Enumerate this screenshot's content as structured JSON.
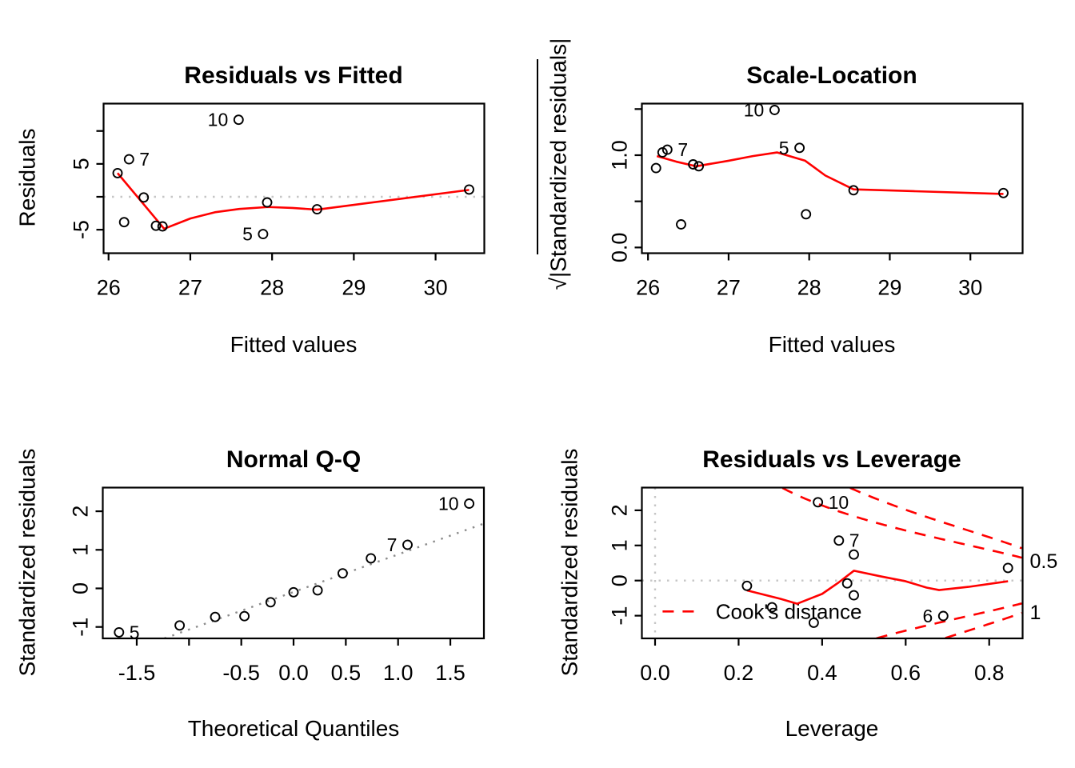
{
  "figure": {
    "description": "R lm() diagnostic plots, 2x2 grid",
    "colors": {
      "smooth": "#ff0000",
      "cooks_contour": "#ff0000",
      "zero_line": "#c6c6c6",
      "qq_line": "#8c8c8c",
      "points": "#000000"
    }
  },
  "chart_data": [
    {
      "type": "scatter",
      "title": "Residuals vs Fitted",
      "xlabel": "Fitted values",
      "ylabel": "Residuals",
      "xlim": [
        25.939,
        30.596
      ],
      "ylim": [
        -8.57,
        14.16
      ],
      "xticks": [
        {
          "v": 26,
          "label": "26"
        },
        {
          "v": 27,
          "label": "27"
        },
        {
          "v": 28,
          "label": "28"
        },
        {
          "v": 29,
          "label": "29"
        },
        {
          "v": 30,
          "label": "30"
        }
      ],
      "yticks": [
        {
          "v": 10,
          "label": ""
        },
        {
          "v": 5,
          "label": "5"
        },
        {
          "v": 0,
          "label": ""
        },
        {
          "v": -5,
          "label": "-5"
        }
      ],
      "zero_line": true,
      "points": [
        {
          "x": 26.11,
          "y": 3.6
        },
        {
          "x": 26.19,
          "y": -3.85
        },
        {
          "x": 26.25,
          "y": 5.7,
          "label": "7",
          "side": "right"
        },
        {
          "x": 26.43,
          "y": -0.1
        },
        {
          "x": 26.58,
          "y": -4.4
        },
        {
          "x": 26.66,
          "y": -4.5
        },
        {
          "x": 27.59,
          "y": 11.7,
          "label": "10",
          "side": "left"
        },
        {
          "x": 27.89,
          "y": -5.67,
          "label": "5",
          "side": "left"
        },
        {
          "x": 27.94,
          "y": -0.85
        },
        {
          "x": 28.55,
          "y": -1.9
        },
        {
          "x": 30.41,
          "y": 1.1
        }
      ],
      "smooth": [
        [
          26.11,
          3.6
        ],
        [
          26.68,
          -4.85
        ],
        [
          27.0,
          -3.3
        ],
        [
          27.3,
          -2.35
        ],
        [
          27.6,
          -1.85
        ],
        [
          27.95,
          -1.55
        ],
        [
          28.25,
          -1.7
        ],
        [
          28.55,
          -1.95
        ],
        [
          30.41,
          1.05
        ]
      ]
    },
    {
      "type": "scatter",
      "title": "Scale-Location",
      "xlabel": "Fitted values",
      "ylabel": "√|Standardized residuals|",
      "xlim": [
        25.924,
        30.648
      ],
      "ylim": [
        -0.062,
        1.559
      ],
      "xticks": [
        {
          "v": 26,
          "label": "26"
        },
        {
          "v": 27,
          "label": "27"
        },
        {
          "v": 28,
          "label": "28"
        },
        {
          "v": 29,
          "label": "29"
        },
        {
          "v": 30,
          "label": "30"
        }
      ],
      "yticks": [
        {
          "v": 1.5,
          "label": ""
        },
        {
          "v": 1.0,
          "label": "1.0"
        },
        {
          "v": 0.5,
          "label": ""
        },
        {
          "v": 0.0,
          "label": "0.0"
        }
      ],
      "zero_line": false,
      "points": [
        {
          "x": 26.1,
          "y": 0.86
        },
        {
          "x": 26.18,
          "y": 1.03
        },
        {
          "x": 26.24,
          "y": 1.06,
          "label": "7",
          "side": "right"
        },
        {
          "x": 26.41,
          "y": 0.25
        },
        {
          "x": 26.56,
          "y": 0.9
        },
        {
          "x": 26.63,
          "y": 0.88
        },
        {
          "x": 27.57,
          "y": 1.49,
          "label": "10",
          "side": "left"
        },
        {
          "x": 27.88,
          "y": 1.08,
          "label": "5",
          "side": "left"
        },
        {
          "x": 27.96,
          "y": 0.36
        },
        {
          "x": 28.55,
          "y": 0.62
        },
        {
          "x": 30.41,
          "y": 0.59
        }
      ],
      "smooth": [
        [
          26.11,
          0.99
        ],
        [
          26.35,
          0.93
        ],
        [
          26.6,
          0.88
        ],
        [
          27.0,
          0.94
        ],
        [
          27.3,
          0.99
        ],
        [
          27.6,
          1.03
        ],
        [
          27.95,
          0.94
        ],
        [
          28.2,
          0.78
        ],
        [
          28.55,
          0.63
        ],
        [
          29.3,
          0.61
        ],
        [
          30.41,
          0.58
        ]
      ]
    },
    {
      "type": "scatter",
      "title": "Normal Q-Q",
      "xlabel": "Theoretical Quantiles",
      "ylabel": "Standardized residuals",
      "xlim": [
        -1.825,
        1.821
      ],
      "ylim": [
        -1.297,
        2.614
      ],
      "xticks": [
        {
          "v": -1.5,
          "label": "-1.5"
        },
        {
          "v": -1.0,
          "label": ""
        },
        {
          "v": -0.5,
          "label": "-0.5"
        },
        {
          "v": 0.0,
          "label": "0.0"
        },
        {
          "v": 0.5,
          "label": "0.5"
        },
        {
          "v": 1.0,
          "label": "1.0"
        },
        {
          "v": 1.5,
          "label": "1.5"
        }
      ],
      "yticks": [
        {
          "v": 2,
          "label": "2"
        },
        {
          "v": 1,
          "label": "1"
        },
        {
          "v": 0,
          "label": "0"
        },
        {
          "v": -1,
          "label": "-1"
        }
      ],
      "zero_line": false,
      "qq_line": {
        "slope": 0.974,
        "intercept": -0.093
      },
      "points": [
        {
          "x": -1.67,
          "y": -1.14,
          "label": "5",
          "side": "right"
        },
        {
          "x": -1.09,
          "y": -0.96
        },
        {
          "x": -0.75,
          "y": -0.74
        },
        {
          "x": -0.47,
          "y": -0.72
        },
        {
          "x": -0.22,
          "y": -0.36
        },
        {
          "x": 0.0,
          "y": -0.1
        },
        {
          "x": 0.23,
          "y": -0.05
        },
        {
          "x": 0.47,
          "y": 0.39
        },
        {
          "x": 0.74,
          "y": 0.78
        },
        {
          "x": 1.09,
          "y": 1.13,
          "label": "7",
          "side": "left"
        },
        {
          "x": 1.68,
          "y": 2.2,
          "label": "10",
          "side": "left"
        }
      ]
    },
    {
      "type": "scatter",
      "title": "Residuals vs Leverage",
      "xlabel": "Leverage",
      "ylabel": "Standardized residuals",
      "xlim": [
        -0.0316,
        0.88
      ],
      "ylim": [
        -1.647,
        2.647
      ],
      "xticks": [
        {
          "v": 0.0,
          "label": "0.0"
        },
        {
          "v": 0.2,
          "label": "0.2"
        },
        {
          "v": 0.4,
          "label": "0.4"
        },
        {
          "v": 0.6,
          "label": "0.6"
        },
        {
          "v": 0.8,
          "label": "0.8"
        }
      ],
      "yticks": [
        {
          "v": 2,
          "label": "2"
        },
        {
          "v": 1,
          "label": "1"
        },
        {
          "v": 0,
          "label": "0"
        },
        {
          "v": -1,
          "label": "-1"
        }
      ],
      "zero_line": true,
      "vzero_line": true,
      "points": [
        {
          "x": 0.22,
          "y": -0.15
        },
        {
          "x": 0.28,
          "y": -0.76
        },
        {
          "x": 0.38,
          "y": -1.2
        },
        {
          "x": 0.39,
          "y": 2.23,
          "label": "10",
          "side": "right"
        },
        {
          "x": 0.44,
          "y": 1.14,
          "label": "7",
          "side": "right"
        },
        {
          "x": 0.476,
          "y": 0.74
        },
        {
          "x": 0.46,
          "y": -0.08
        },
        {
          "x": 0.476,
          "y": -0.42
        },
        {
          "x": 0.69,
          "y": -1.01,
          "label": "6",
          "side": "left"
        },
        {
          "x": 0.845,
          "y": 0.36
        }
      ],
      "smooth": [
        [
          0.22,
          -0.28
        ],
        [
          0.3,
          -0.52
        ],
        [
          0.34,
          -0.66
        ],
        [
          0.4,
          -0.38
        ],
        [
          0.44,
          -0.05
        ],
        [
          0.476,
          0.28
        ],
        [
          0.54,
          0.12
        ],
        [
          0.6,
          -0.02
        ],
        [
          0.65,
          -0.2
        ],
        [
          0.68,
          -0.27
        ],
        [
          0.75,
          -0.18
        ],
        [
          0.845,
          -0.02
        ]
      ],
      "cooks": {
        "K": 6.1,
        "levels": [
          0.5,
          1
        ],
        "edge_labels": [
          {
            "text": "0.5",
            "y": 0.54
          },
          {
            "text": "1",
            "y": -0.92
          }
        ]
      },
      "legend": {
        "text": "Cook's distance",
        "y": -0.88,
        "line_x": [
          0.018,
          0.1
        ],
        "text_x": 0.145
      }
    }
  ]
}
